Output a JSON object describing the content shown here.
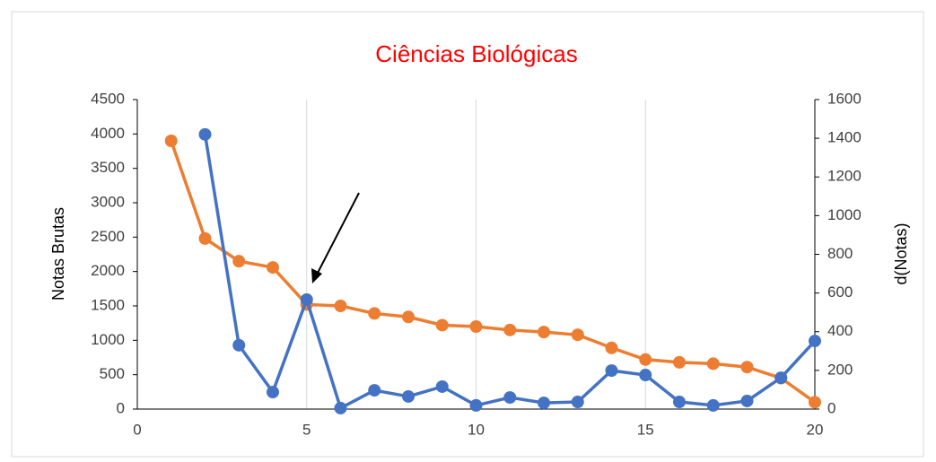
{
  "chart_data": {
    "type": "line",
    "title": "Ciências Biológicas",
    "x_label": null,
    "y_label": "Notas Brutas",
    "y2_label": "d(Notas)",
    "x": [
      1,
      2,
      3,
      4,
      5,
      6,
      7,
      8,
      9,
      10,
      11,
      12,
      13,
      14,
      15,
      16,
      17,
      18,
      19,
      20
    ],
    "series": [
      {
        "name": "Notas Brutas",
        "color": "#ed7d31",
        "axis": "y",
        "values": [
          3900,
          2480,
          2150,
          2060,
          1520,
          1500,
          1390,
          1340,
          1220,
          1200,
          1150,
          1120,
          1080,
          890,
          720,
          680,
          660,
          610,
          450,
          100
        ]
      },
      {
        "name": "d(Notas)",
        "color": "#4472c4",
        "axis": "y2",
        "values": [
          null,
          1420,
          330,
          88,
          566,
          5,
          97,
          65,
          116,
          19,
          60,
          32,
          37,
          199,
          176,
          37,
          19,
          42,
          162,
          352
        ]
      }
    ],
    "xlim": [
      0,
      20
    ],
    "xticks": [
      0,
      5,
      10,
      15,
      20
    ],
    "ylim": [
      0,
      4500
    ],
    "yticks": [
      0,
      500,
      1000,
      1500,
      2000,
      2500,
      3000,
      3500,
      4000,
      4500
    ],
    "y2lim": [
      0,
      1600
    ],
    "y2ticks": [
      0,
      200,
      400,
      600,
      800,
      1000,
      1200,
      1400,
      1600
    ],
    "grid": "x"
  }
}
